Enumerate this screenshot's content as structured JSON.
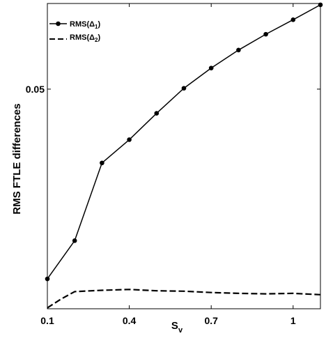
{
  "chart_data": {
    "type": "line",
    "xlabel_main": "S",
    "xlabel_sub": "v",
    "ylabel": "RMS FTLE differences",
    "xlim": [
      0.1,
      1.1
    ],
    "ylim": [
      0.0,
      0.0695
    ],
    "xticks": [
      {
        "value": 0.1,
        "label": "0.1"
      },
      {
        "value": 0.4,
        "label": "0.4"
      },
      {
        "value": 0.7,
        "label": "0.7"
      },
      {
        "value": 1.0,
        "label": "1"
      }
    ],
    "yticks": [
      {
        "value": 0.05,
        "label": "0.05"
      }
    ],
    "legend": {
      "position": "top-left",
      "entries": [
        {
          "prefix": "RMS(",
          "symbol": "Δ",
          "sub": "1",
          "suffix": ")",
          "style": "solid-marker"
        },
        {
          "prefix": "RMS(",
          "symbol": "Δ",
          "sub": "2",
          "suffix": ")",
          "style": "dashed"
        }
      ]
    },
    "series": [
      {
        "style": "solid-marker",
        "color": "#000000",
        "x": [
          0.1,
          0.2,
          0.3,
          0.4,
          0.5,
          0.6,
          0.7,
          0.8,
          0.9,
          1.0,
          1.1
        ],
        "y": [
          0.0068,
          0.0155,
          0.0332,
          0.0385,
          0.0445,
          0.0502,
          0.0548,
          0.0589,
          0.0625,
          0.0658,
          0.0692
        ]
      },
      {
        "style": "dashed",
        "color": "#000000",
        "x": [
          0.1,
          0.15,
          0.2,
          0.3,
          0.4,
          0.5,
          0.6,
          0.7,
          0.8,
          0.9,
          1.0,
          1.1
        ],
        "y": [
          0.0002,
          0.0022,
          0.0039,
          0.0042,
          0.0044,
          0.0041,
          0.004,
          0.0037,
          0.0035,
          0.0034,
          0.0035,
          0.0032
        ]
      }
    ]
  }
}
